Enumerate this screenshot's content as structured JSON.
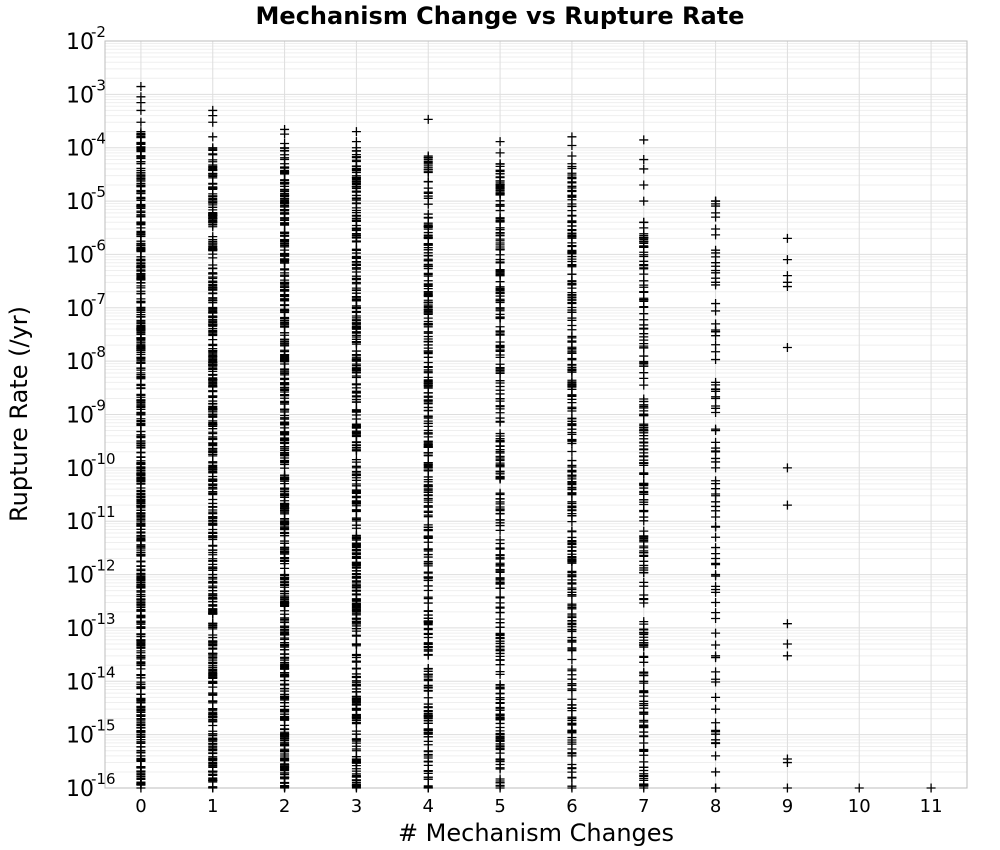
{
  "chart_data": {
    "type": "scatter",
    "title": "Mechanism Change vs Rupture Rate",
    "xlabel": "# Mechanism Changes",
    "ylabel": "Rupture Rate (/yr)",
    "xlim": [
      -0.5,
      11.5
    ],
    "ylim": [
      1e-16,
      0.01
    ],
    "y_scale": "log",
    "grid": true,
    "marker": "plus",
    "x_ticks": [
      "0",
      "1",
      "2",
      "3",
      "4",
      "5",
      "6",
      "7",
      "8",
      "9",
      "10",
      "11"
    ],
    "y_tick_exponents": [
      "-16",
      "-15",
      "-14",
      "-13",
      "-12",
      "-11",
      "-10",
      "-9",
      "-8",
      "-7",
      "-6",
      "-5",
      "-4",
      "-3",
      "-2"
    ],
    "y_tick_base": "10",
    "series": [
      {
        "x_values": [
          0,
          1,
          2,
          3,
          4,
          5,
          6,
          7,
          8,
          9,
          10,
          11
        ],
        "y_ranges": [
          [
            1e-16,
            0.0002
          ],
          [
            1e-16,
            0.0001
          ],
          [
            1e-16,
            0.0001
          ],
          [
            1e-16,
            0.0001
          ],
          [
            1e-16,
            7e-05
          ],
          [
            1e-16,
            5e-05
          ],
          [
            1e-16,
            5e-05
          ],
          [
            1e-16,
            4e-06
          ],
          [
            1e-16,
            1e-05
          ],
          [
            1e-16,
            2e-06
          ],
          [
            1e-16,
            1e-16
          ],
          [
            1e-16,
            1e-16
          ]
        ],
        "densities": [
          1,
          0.85,
          0.9,
          0.75,
          0.6,
          0.55,
          0.5,
          0.4,
          0.08,
          0,
          0,
          0
        ],
        "outliers": [
          [
            0,
            0.0014
          ],
          [
            0,
            0.0009
          ],
          [
            0,
            0.0007
          ],
          [
            0,
            0.0005
          ],
          [
            0,
            0.0003
          ],
          [
            1,
            0.0005
          ],
          [
            1,
            0.0004
          ],
          [
            1,
            0.0003
          ],
          [
            1,
            0.00016
          ],
          [
            2,
            0.00022
          ],
          [
            2,
            0.00018
          ],
          [
            2,
            0.00012
          ],
          [
            3,
            0.0002
          ],
          [
            3,
            0.00013
          ],
          [
            4,
            0.00034
          ],
          [
            5,
            0.00013
          ],
          [
            5,
            8e-05
          ],
          [
            6,
            0.00016
          ],
          [
            6,
            0.00011
          ],
          [
            6,
            7e-05
          ],
          [
            7,
            0.00014
          ],
          [
            7,
            6e-05
          ],
          [
            7,
            4e-05
          ],
          [
            7,
            2e-05
          ],
          [
            7,
            1e-05
          ],
          [
            8,
            1e-05
          ],
          [
            8,
            6e-06
          ],
          [
            8,
            5e-06
          ],
          [
            8,
            3e-06
          ],
          [
            8,
            1.2e-06
          ],
          [
            8,
            9e-07
          ],
          [
            8,
            7e-07
          ],
          [
            8,
            5e-07
          ],
          [
            8,
            3e-07
          ],
          [
            8,
            1.2e-07
          ],
          [
            8,
            5e-08
          ],
          [
            8,
            3e-08
          ],
          [
            8,
            1.5e-08
          ],
          [
            8,
            4e-09
          ],
          [
            8,
            3e-09
          ],
          [
            8,
            2e-09
          ],
          [
            8,
            5e-10
          ],
          [
            8,
            3e-10
          ],
          [
            8,
            2e-10
          ],
          [
            8,
            1.5e-10
          ],
          [
            8,
            1e-10
          ],
          [
            8,
            3e-11
          ],
          [
            8,
            1.2e-11
          ],
          [
            8,
            8e-12
          ],
          [
            8,
            5e-12
          ],
          [
            8,
            2e-12
          ],
          [
            8,
            1e-12
          ],
          [
            8,
            6e-13
          ],
          [
            8,
            3e-13
          ],
          [
            8,
            1.5e-13
          ],
          [
            8,
            8e-14
          ],
          [
            8,
            3e-14
          ],
          [
            8,
            1.5e-14
          ],
          [
            8,
            5e-15
          ],
          [
            8,
            3e-15
          ],
          [
            8,
            1.2e-15
          ],
          [
            8,
            8e-16
          ],
          [
            8,
            4e-16
          ],
          [
            8,
            2e-16
          ],
          [
            8,
            1e-16
          ],
          [
            9,
            2e-06
          ],
          [
            9,
            8e-07
          ],
          [
            9,
            4e-07
          ],
          [
            9,
            3e-07
          ],
          [
            9,
            2.5e-07
          ],
          [
            9,
            1.8e-08
          ],
          [
            9,
            1e-10
          ],
          [
            9,
            2e-11
          ],
          [
            9,
            1.2e-13
          ],
          [
            9,
            5e-14
          ],
          [
            9,
            3e-14
          ],
          [
            9,
            3.5e-16
          ],
          [
            9,
            3e-16
          ],
          [
            9,
            1e-16
          ],
          [
            10,
            1e-16
          ],
          [
            11,
            1e-16
          ]
        ]
      }
    ]
  }
}
